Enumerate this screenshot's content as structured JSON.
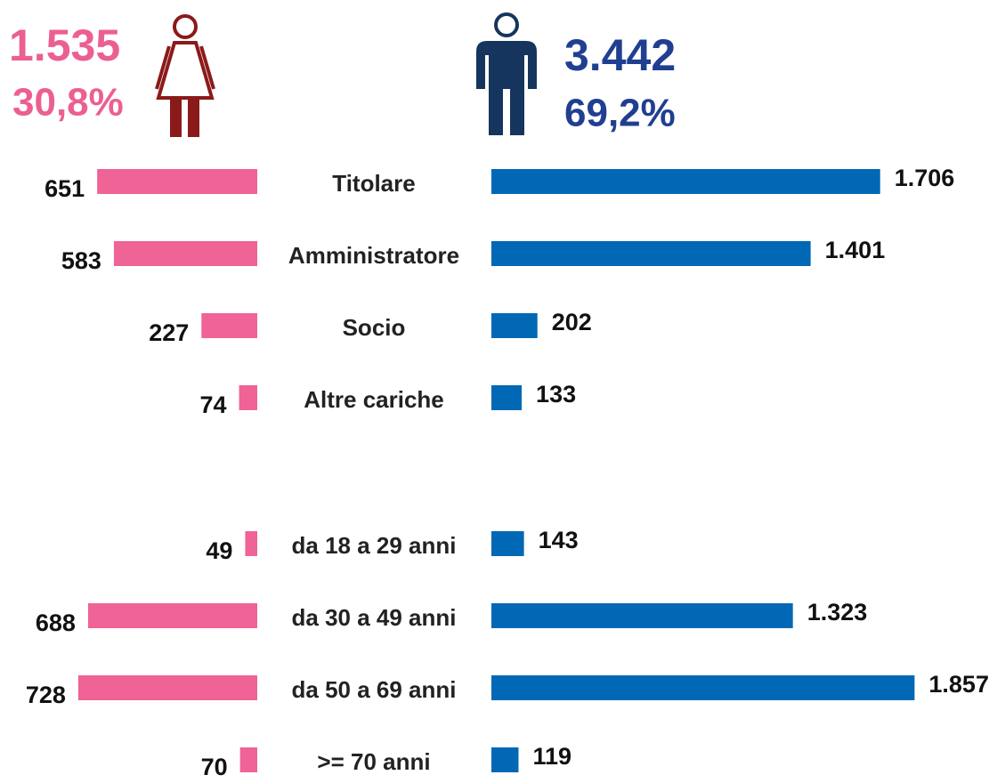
{
  "header": {
    "female": {
      "total": {
        "value": 1535,
        "label": "1.535"
      },
      "share": {
        "value": 30.8,
        "label": "30,8%"
      },
      "color": "#ec5f92"
    },
    "male": {
      "total": {
        "value": 3442,
        "label": "3.442"
      },
      "share": {
        "value": 69.2,
        "label": "69,2%"
      },
      "color": "#213f91"
    }
  },
  "chart_data": [
    {
      "type": "butterfly",
      "categories": [
        "Titolare",
        "Amministratore",
        "Socio",
        "Altre cariche"
      ],
      "series": [
        {
          "color": "#ef6396",
          "xlim": [
            0,
            800
          ],
          "values": [
            651,
            583,
            227,
            74
          ],
          "value_labels": [
            "651",
            "583",
            "227",
            "74"
          ]
        },
        {
          "color": "#0068b4",
          "xlim": [
            0,
            2000
          ],
          "values": [
            1706,
            1401,
            202,
            133
          ],
          "value_labels": [
            "1.706",
            "1.401",
            "202",
            "133"
          ]
        }
      ]
    },
    {
      "type": "butterfly",
      "categories": [
        "da 18 a 29 anni",
        "da 30 a 49 anni",
        "da 50 a 69 anni",
        ">= 70 anni"
      ],
      "series": [
        {
          "color": "#ef6396",
          "xlim": [
            0,
            800
          ],
          "values": [
            49,
            688,
            728,
            70
          ],
          "value_labels": [
            "49",
            "688",
            "728",
            "70"
          ]
        },
        {
          "color": "#0068b4",
          "xlim": [
            0,
            2000
          ],
          "values": [
            143,
            1323,
            1857,
            119
          ],
          "value_labels": [
            "143",
            "1.323",
            "1.857",
            "119"
          ]
        }
      ]
    }
  ]
}
